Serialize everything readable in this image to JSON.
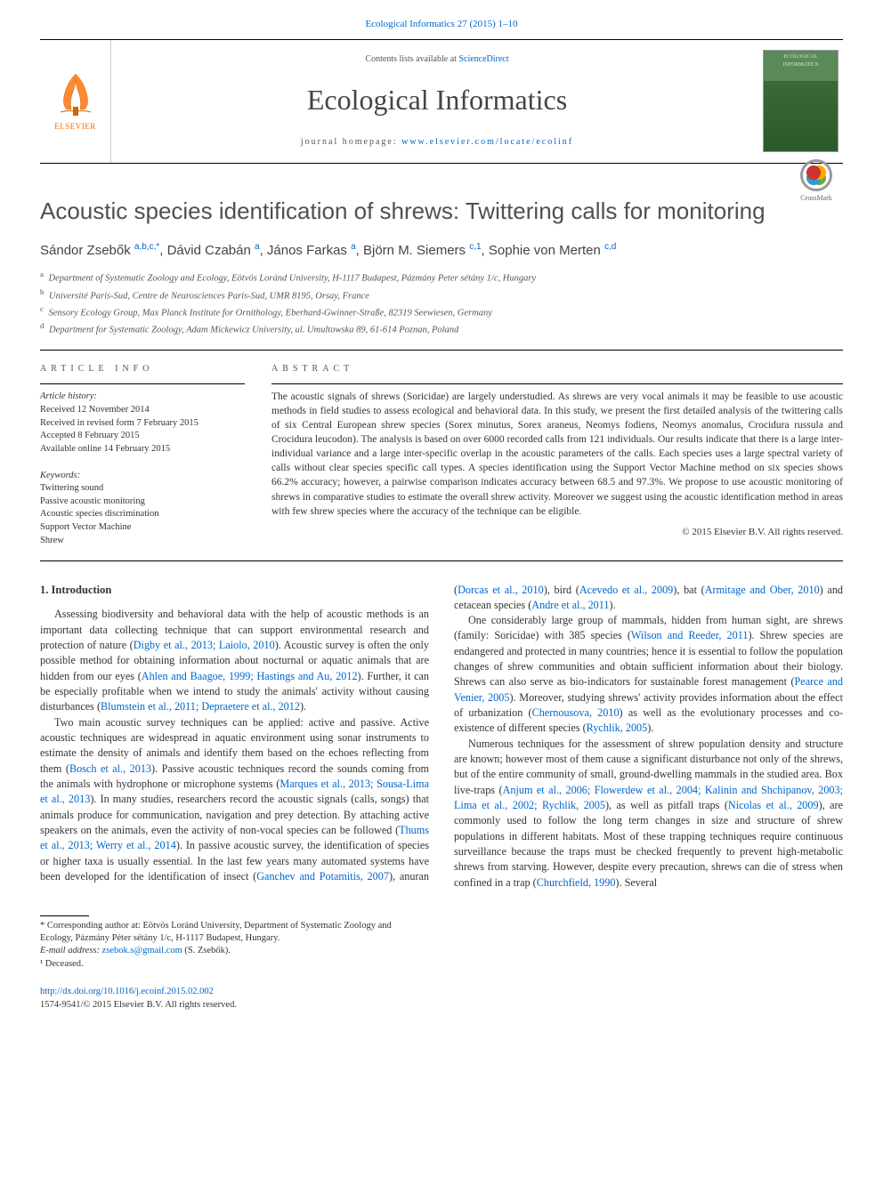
{
  "header": {
    "top_link": "Ecological Informatics 27 (2015) 1–10",
    "elsevier": "ELSEVIER",
    "contents_prefix": "Contents lists available at ",
    "contents_link": "ScienceDirect",
    "journal_name": "Ecological Informatics",
    "homepage_label": "journal homepage: ",
    "homepage_url": "www.elsevier.com/locate/ecolinf",
    "cover_title": "ECOLOGICAL INFORMATICS",
    "crossmark": "CrossMark"
  },
  "article": {
    "title": "Acoustic species identification of shrews: Twittering calls for monitoring",
    "authors_html": "Sándor Zsebők <sup>a,b,c,*</sup>, Dávid Czabán <sup>a</sup>, János Farkas <sup>a</sup>, Björn M. Siemers <sup>c,1</sup>, Sophie von Merten <sup>c,d</sup>",
    "affiliations": [
      {
        "sup": "a",
        "text": "Department of Systematic Zoology and Ecology, Eötvös Loránd University, H-1117 Budapest, Pázmány Peter sétány 1/c, Hungary"
      },
      {
        "sup": "b",
        "text": "Université Paris-Sud, Centre de Neurosciences Paris-Sud, UMR 8195, Orsay, France"
      },
      {
        "sup": "c",
        "text": "Sensory Ecology Group, Max Planck Institute for Ornithology, Eberhard-Gwinner-Straße, 82319 Seewiesen, Germany"
      },
      {
        "sup": "d",
        "text": "Department for Systematic Zoology, Adam Mickewicz University, ul. Umultowska 89, 61-614 Poznan, Poland"
      }
    ]
  },
  "info": {
    "heading": "article info",
    "history_heading": "Article history:",
    "history": [
      "Received 12 November 2014",
      "Received in revised form 7 February 2015",
      "Accepted 8 February 2015",
      "Available online 14 February 2015"
    ],
    "keywords_heading": "Keywords:",
    "keywords": [
      "Twittering sound",
      "Passive acoustic monitoring",
      "Acoustic species discrimination",
      "Support Vector Machine",
      "Shrew"
    ]
  },
  "abstract": {
    "heading": "abstract",
    "text": "The acoustic signals of shrews (Soricidae) are largely understudied. As shrews are very vocal animals it may be feasible to use acoustic methods in field studies to assess ecological and behavioral data. In this study, we present the first detailed analysis of the twittering calls of six Central European shrew species (Sorex minutus, Sorex araneus, Neomys fodiens, Neomys anomalus, Crocidura russula and Crocidura leucodon). The analysis is based on over 6000 recorded calls from 121 individuals. Our results indicate that there is a large inter-individual variance and a large inter-specific overlap in the acoustic parameters of the calls. Each species uses a large spectral variety of calls without clear species specific call types. A species identification using the Support Vector Machine method on six species shows 66.2% accuracy; however, a pairwise comparison indicates accuracy between 68.5 and 97.3%. We propose to use acoustic monitoring of shrews in comparative studies to estimate the overall shrew activity. Moreover we suggest using the acoustic identification method in areas with few shrew species where the accuracy of the technique can be eligible.",
    "copyright": "© 2015 Elsevier B.V. All rights reserved."
  },
  "body": {
    "section_heading": "1. Introduction",
    "p1_a": "Assessing biodiversity and behavioral data with the help of acoustic methods is an important data collecting technique that can support environmental research and protection of nature (",
    "p1_l1": "Digby et al., 2013; Laiolo, 2010",
    "p1_b": "). Acoustic survey is often the only possible method for obtaining information about nocturnal or aquatic animals that are hidden from our eyes (",
    "p1_l2": "Ahlen and Baagoe, 1999; Hastings and Au, 2012",
    "p1_c": "). Further, it can be especially profitable when we intend to study the animals' activity without causing disturbances (",
    "p1_l3": "Blumstein et al., 2011; Depraetere et al., 2012",
    "p1_d": ").",
    "p2_a": "Two main acoustic survey techniques can be applied: active and passive. Active acoustic techniques are widespread in aquatic environment using sonar instruments to estimate the density of animals and identify them based on the echoes reflecting from them (",
    "p2_l1": "Bosch et al., 2013",
    "p2_b": "). Passive acoustic techniques record the sounds coming from the animals with hydrophone or microphone systems (",
    "p2_l2": "Marques et al., 2013; Sousa-Lima et al., 2013",
    "p2_c": "). In many studies, researchers record the acoustic signals (calls, songs) that animals produce for communication, navigation and prey detection. By attaching active speakers on the animals, even the activity of non-vocal species can be followed (",
    "p2_l3": "Thums et al., 2013; Werry et al., 2014",
    "p2_d": "). In passive acoustic survey, the identification of species or higher taxa is usually essential. In the last few years many automated systems have been developed for the identification of insect (",
    "p2_l4": "Ganchev and Potamitis, 2007",
    "p2_e": "), anuran (",
    "p2_l5": "Dorcas et al., 2010",
    "p2_f": "), bird (",
    "p2_l6": "Acevedo et al., 2009",
    "p2_g": "), bat (",
    "p2_l7": "Armitage and Ober, 2010",
    "p2_h": ") and cetacean species (",
    "p2_l8": "Andre et al., 2011",
    "p2_i": ").",
    "p3_a": "One considerably large group of mammals, hidden from human sight, are shrews (family: Soricidae) with 385 species (",
    "p3_l1": "Wilson and Reeder, 2011",
    "p3_b": "). Shrew species are endangered and protected in many countries; hence it is essential to follow the population changes of shrew communities and obtain sufficient information about their biology. Shrews can also serve as bio-indicators for sustainable forest management (",
    "p3_l2": "Pearce and Venier, 2005",
    "p3_c": "). Moreover, studying shrews' activity provides information about the effect of urbanization (",
    "p3_l3": "Chernousova, 2010",
    "p3_d": ") as well as the evolutionary processes and co-existence of different species (",
    "p3_l4": "Rychlik, 2005",
    "p3_e": ").",
    "p4_a": "Numerous techniques for the assessment of shrew population density and structure are known; however most of them cause a significant disturbance not only of the shrews, but of the entire community of small, ground-dwelling mammals in the studied area. Box live-traps (",
    "p4_l1": "Anjum et al., 2006; Flowerdew et al., 2004; Kalinin and Shchipanov, 2003; Lima et al., 2002; Rychlik, 2005",
    "p4_b": "), as well as pitfall traps (",
    "p4_l2": "Nicolas et al., 2009",
    "p4_c": "), are commonly used to follow the long term changes in size and structure of shrew populations in different habitats. Most of these trapping techniques require continuous surveillance because the traps must be checked frequently to prevent high-metabolic shrews from starving. However, despite every precaution, shrews can die of stress when confined in a trap (",
    "p4_l3": "Churchfield, 1990",
    "p4_d": "). Several"
  },
  "footnotes": {
    "corresponding": "* Corresponding author at: Eötvös Loránd University, Department of Systematic Zoology and Ecology, Pázmány Péter sétány 1/c, H-1117 Budapest, Hungary.",
    "email_label": "E-mail address: ",
    "email": "zsebok.s@gmail.com",
    "email_who": " (S. Zsebők).",
    "deceased": "¹ Deceased."
  },
  "doi": {
    "url": "http://dx.doi.org/10.1016/j.ecoinf.2015.02.002",
    "issn_line": "1574-9541/© 2015 Elsevier B.V. All rights reserved."
  },
  "colors": {
    "link": "#0066cc",
    "text": "#333333",
    "elsevier_orange": "#ff6600"
  }
}
